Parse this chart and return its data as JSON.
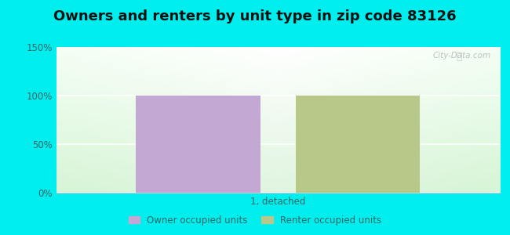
{
  "title": "Owners and renters by unit type in zip code 83126",
  "categories": [
    "1, detached"
  ],
  "owner_values": [
    100
  ],
  "renter_values": [
    100
  ],
  "owner_color": "#c4a8d4",
  "renter_color": "#b8c888",
  "background_outer": "#00eeee",
  "ylim": [
    0,
    150
  ],
  "yticks": [
    0,
    50,
    100,
    150
  ],
  "ytick_labels": [
    "0%",
    "50%",
    "100%",
    "150%"
  ],
  "bar_width": 0.28,
  "bar_gap": 0.08,
  "title_fontsize": 13,
  "legend_owner": "Owner occupied units",
  "legend_renter": "Renter occupied units",
  "watermark": "City-Data.com",
  "tick_color": "#336666",
  "grid_color": "#e0e8e0"
}
